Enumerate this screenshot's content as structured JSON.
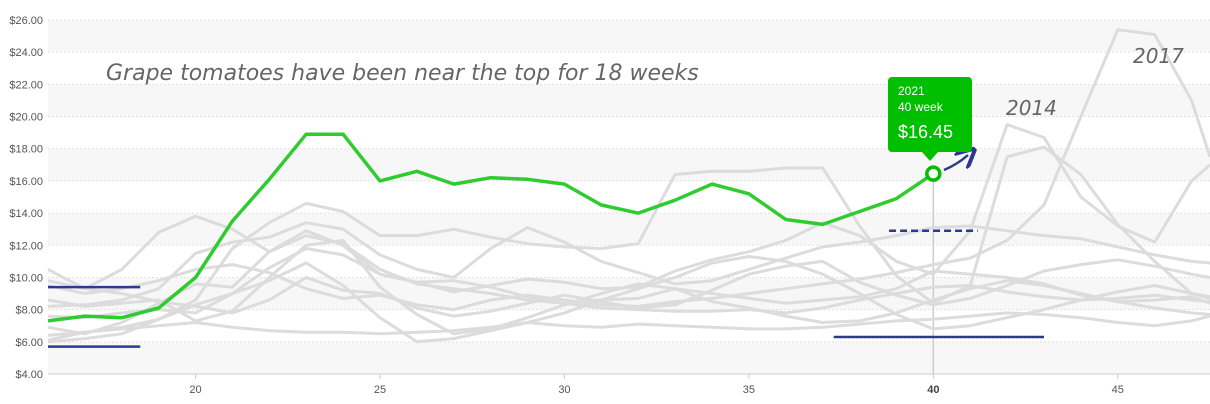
{
  "chart_data": {
    "type": "line",
    "title": "",
    "xlabel": "",
    "ylabel": "",
    "xlim": [
      16,
      47.5
    ],
    "ylim": [
      4,
      26
    ],
    "grid": "alternating horizontal bands",
    "x_ticks": [
      20,
      25,
      30,
      35,
      40,
      45
    ],
    "x_tick_labels": [
      "20",
      "25",
      "30",
      "35",
      "40",
      "45"
    ],
    "y_ticks": [
      4,
      6,
      8,
      10,
      12,
      14,
      16,
      18,
      20,
      22,
      24,
      26
    ],
    "y_tick_labels": [
      "$4.00",
      "$6.00",
      "$8.00",
      "$10.00",
      "$12.00",
      "$14.00",
      "$16.00",
      "$18.00",
      "$20.00",
      "$22.00",
      "$24.00",
      "$26.00"
    ],
    "highlight_color": "#2ecc2e",
    "background_series_color": "#dcdcdc",
    "marker_color": "#2b3a8f",
    "series": [
      {
        "name": "2021",
        "highlight": true,
        "x": [
          16,
          17,
          18,
          19,
          20,
          21,
          22,
          23,
          24,
          25,
          26,
          27,
          28,
          29,
          30,
          31,
          32,
          33,
          34,
          35,
          36,
          37,
          38,
          39,
          40
        ],
        "y": [
          7.3,
          7.6,
          7.5,
          8.1,
          10.0,
          13.5,
          16.1,
          18.9,
          18.9,
          16.0,
          16.6,
          15.8,
          16.2,
          16.1,
          15.8,
          14.5,
          14.0,
          14.8,
          15.8,
          15.2,
          13.6,
          13.3,
          14.1,
          14.9,
          16.45
        ]
      },
      {
        "name": "2017",
        "x": [
          16,
          17,
          18,
          19,
          20,
          21,
          22,
          23,
          24,
          25,
          26,
          27,
          28,
          29,
          30,
          31,
          32,
          33,
          34,
          35,
          36,
          37,
          38,
          39,
          40,
          41,
          42,
          43,
          44,
          45,
          46,
          47,
          47.5
        ],
        "y": [
          9.5,
          9.0,
          9.3,
          9.8,
          10.5,
          10.8,
          10.3,
          9.3,
          8.7,
          8.9,
          8.3,
          8.0,
          8.6,
          8.9,
          8.6,
          8.3,
          8.2,
          8.5,
          8.7,
          9.0,
          9.3,
          9.6,
          9.9,
          10.3,
          10.8,
          11.2,
          12.3,
          14.5,
          20.0,
          25.4,
          25.1,
          21.0,
          17.5
        ]
      },
      {
        "name": "2014",
        "x": [
          16,
          17,
          18,
          19,
          20,
          21,
          22,
          23,
          24,
          25,
          26,
          27,
          28,
          29,
          30,
          31,
          32,
          33,
          34,
          35,
          36,
          37,
          38,
          39,
          40,
          41,
          42,
          43,
          44,
          45,
          46,
          47,
          47.5
        ],
        "y": [
          10.5,
          9.3,
          10.5,
          12.8,
          13.8,
          13.0,
          11.6,
          12.9,
          12.0,
          10.2,
          9.7,
          9.1,
          9.5,
          9.9,
          9.7,
          9.3,
          9.4,
          10.4,
          11.1,
          11.6,
          12.3,
          13.4,
          12.6,
          11.0,
          10.2,
          12.9,
          19.5,
          18.7,
          15.0,
          13.2,
          12.2,
          16.0,
          17.0
        ]
      },
      {
        "name": "",
        "x": [
          16,
          17,
          18,
          19,
          20,
          21,
          22,
          23,
          24,
          25,
          26,
          27,
          28,
          29,
          30,
          31,
          32,
          33,
          34,
          35,
          36,
          37,
          38,
          39,
          40,
          41,
          42,
          43,
          44,
          45,
          46,
          47,
          47.5
        ],
        "y": [
          6.1,
          6.6,
          6.9,
          7.4,
          8.6,
          11.8,
          13.4,
          14.6,
          14.1,
          12.6,
          12.6,
          13.0,
          12.5,
          12.1,
          11.9,
          11.8,
          12.1,
          16.4,
          16.6,
          16.6,
          16.8,
          16.8,
          13.2,
          10.1,
          8.4,
          9.5,
          17.5,
          18.1,
          16.4,
          13.3,
          11.0,
          9.0,
          8.7
        ]
      },
      {
        "name": "",
        "x": [
          16,
          17,
          18,
          19,
          20,
          21,
          22,
          23,
          24,
          25,
          26,
          27,
          28,
          29,
          30,
          31,
          32,
          33,
          34,
          35,
          36,
          37,
          38,
          39,
          40,
          41,
          42,
          43,
          44,
          45,
          46,
          47,
          47.5
        ],
        "y": [
          8.2,
          8.3,
          8.6,
          9.3,
          11.5,
          12.2,
          12.5,
          13.4,
          13.0,
          11.4,
          10.5,
          10.0,
          11.8,
          13.1,
          12.2,
          11.0,
          10.3,
          9.6,
          9.8,
          10.5,
          11.2,
          11.9,
          12.2,
          12.6,
          13.1,
          13.2,
          12.9,
          12.6,
          12.4,
          11.9,
          11.4,
          11.0,
          10.9
        ]
      },
      {
        "name": "",
        "x": [
          16,
          17,
          18,
          19,
          20,
          21,
          22,
          23,
          24,
          25,
          26,
          27,
          28,
          29,
          30,
          31,
          32,
          33,
          34,
          35,
          36,
          37,
          38,
          39,
          40,
          41,
          42,
          43,
          44,
          45,
          46,
          47,
          47.5
        ],
        "y": [
          6.9,
          6.5,
          7.2,
          8.4,
          9.6,
          9.4,
          11.6,
          12.6,
          12.1,
          10.5,
          9.6,
          9.3,
          9.0,
          8.6,
          8.4,
          8.6,
          8.7,
          9.3,
          9.0,
          8.7,
          8.4,
          8.6,
          8.8,
          9.3,
          10.4,
          10.2,
          10.0,
          9.6,
          8.9,
          8.5,
          8.6,
          8.8,
          8.4
        ]
      },
      {
        "name": "",
        "x": [
          16,
          17,
          18,
          19,
          20,
          21,
          22,
          23,
          24,
          25,
          26,
          27,
          28,
          29,
          30,
          31,
          32,
          33,
          34,
          35,
          36,
          37,
          38,
          39,
          40,
          41,
          42,
          43,
          44,
          45,
          46,
          47,
          47.5
        ],
        "y": [
          9.8,
          9.3,
          9.0,
          8.5,
          8.2,
          7.8,
          8.6,
          10.0,
          9.2,
          9.0,
          8.1,
          7.6,
          7.9,
          8.4,
          8.9,
          8.5,
          8.1,
          8.3,
          9.2,
          10.2,
          10.7,
          11.0,
          9.7,
          8.9,
          8.3,
          8.7,
          9.5,
          10.4,
          10.8,
          11.1,
          10.7,
          10.2,
          10.0
        ]
      },
      {
        "name": "",
        "x": [
          16,
          17,
          18,
          19,
          20,
          21,
          22,
          23,
          24,
          25,
          26,
          27,
          28,
          29,
          30,
          31,
          32,
          33,
          34,
          35,
          36,
          37,
          38,
          39,
          40,
          41,
          42,
          43,
          44,
          45,
          46,
          47,
          47.5
        ],
        "y": [
          7.6,
          7.5,
          7.8,
          8.0,
          7.8,
          9.0,
          10.6,
          11.8,
          11.4,
          10.2,
          9.7,
          9.8,
          9.4,
          8.8,
          8.4,
          8.1,
          8.0,
          7.9,
          7.9,
          8.0,
          7.8,
          8.1,
          8.6,
          9.0,
          9.4,
          9.5,
          9.1,
          8.8,
          8.6,
          8.7,
          8.9,
          8.6,
          8.5
        ]
      },
      {
        "name": "",
        "x": [
          16,
          17,
          18,
          19,
          20,
          21,
          22,
          23,
          24,
          25,
          26,
          27,
          28,
          29,
          30,
          31,
          32,
          33,
          34,
          35,
          36,
          37,
          38,
          39,
          40,
          41,
          42,
          43,
          44,
          45,
          46,
          47,
          47.5
        ],
        "y": [
          6.4,
          6.6,
          6.8,
          7.0,
          7.2,
          6.9,
          6.7,
          6.6,
          6.6,
          6.5,
          6.6,
          6.7,
          6.9,
          7.2,
          7.0,
          6.9,
          7.1,
          7.0,
          6.9,
          6.8,
          6.8,
          6.9,
          7.1,
          7.3,
          7.4,
          7.6,
          7.8,
          7.7,
          7.5,
          7.2,
          7.0,
          7.3,
          7.6
        ]
      },
      {
        "name": "",
        "x": [
          16,
          17,
          18,
          19,
          20,
          21,
          22,
          23,
          24,
          25,
          26,
          27,
          28,
          29,
          30,
          31,
          32,
          33,
          34,
          35,
          36,
          37,
          38,
          39,
          40,
          41,
          42,
          43,
          44,
          45,
          46,
          47,
          47.5
        ],
        "y": [
          8.6,
          8.2,
          8.4,
          8.6,
          7.3,
          7.9,
          10.0,
          12.0,
          12.3,
          9.4,
          7.7,
          6.5,
          6.8,
          7.5,
          8.3,
          9.0,
          9.6,
          9.3,
          8.5,
          8.1,
          7.6,
          7.2,
          7.3,
          7.8,
          8.6,
          9.3,
          9.8,
          9.5,
          9.0,
          8.5,
          8.1,
          7.8,
          7.7
        ]
      },
      {
        "name": "",
        "x": [
          16,
          17,
          18,
          19,
          20,
          21,
          22,
          23,
          24,
          25,
          26,
          27,
          28,
          29,
          30,
          31,
          32,
          33,
          34,
          35,
          36,
          37,
          38,
          39,
          40,
          41,
          42,
          43,
          44,
          45,
          46,
          47,
          47.5
        ],
        "y": [
          6.0,
          6.2,
          6.5,
          7.4,
          8.3,
          9.0,
          9.8,
          10.9,
          9.5,
          7.5,
          6.0,
          6.2,
          6.7,
          7.2,
          7.8,
          8.6,
          9.3,
          10.0,
          10.9,
          11.3,
          11.0,
          10.2,
          9.0,
          7.7,
          6.8,
          7.0,
          7.5,
          8.0,
          8.6,
          9.1,
          9.5,
          9.0,
          8.8
        ]
      }
    ],
    "reference_lines": [
      {
        "style": "solid",
        "x": [
          16,
          18.5
        ],
        "y": 9.4
      },
      {
        "style": "solid",
        "x": [
          16,
          18.5
        ],
        "y": 5.7
      },
      {
        "style": "dashed",
        "x": [
          38.8,
          41.2
        ],
        "y": 12.9
      },
      {
        "style": "solid",
        "x": [
          37.3,
          43
        ],
        "y": 6.3
      }
    ],
    "crosshair_x": 40,
    "tooltip": {
      "year": "2021",
      "week": "40 week",
      "price": "$16.45",
      "x": 40,
      "y": 16.45
    },
    "annotations": {
      "headline": "Grape tomatoes have been near the top for 18 weeks",
      "label_2017": "2017",
      "label_2014": "2014"
    }
  }
}
